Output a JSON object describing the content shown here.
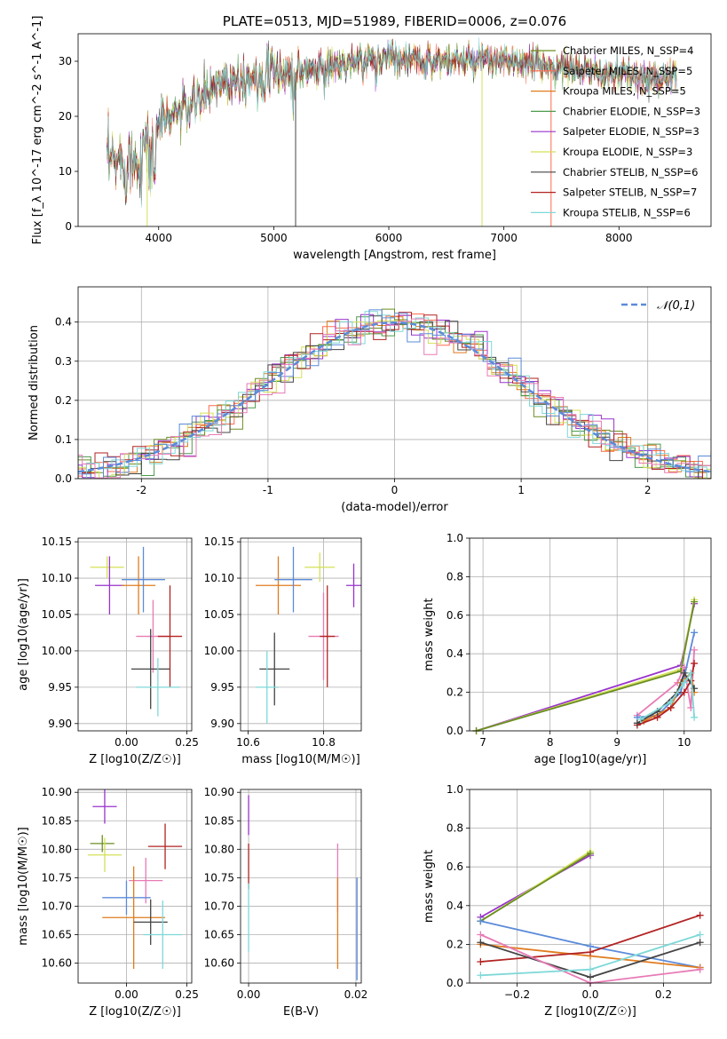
{
  "chart_data": [
    {
      "id": "spectrum",
      "type": "line",
      "title": "PLATE=0513, MJD=51989, FIBERID=0006, z=0.076",
      "xlabel": "wavelength [Angstrom, rest frame]",
      "ylabel": "Flux [f_λ 10^-17 erg cm^-2 s^-1 A^-1]",
      "xlim": [
        3300,
        8800
      ],
      "ylim": [
        0,
        35
      ],
      "xticks": [
        4000,
        5000,
        6000,
        7000,
        8000
      ],
      "yticks": [
        0,
        10,
        20,
        30
      ],
      "grid": false,
      "legend_position": "top-right",
      "legend": [
        {
          "label": "Chabrier MILES, N_SSP=4",
          "color": "#6b8e23"
        },
        {
          "label": "Salpeter MILES, N_SSP=5",
          "color": "#ff6a4d"
        },
        {
          "label": "Kroupa MILES, N_SSP=5",
          "color": "#e07b1f"
        },
        {
          "label": "Chabrier ELODIE, N_SSP=3",
          "color": "#4e9a4e"
        },
        {
          "label": "Salpeter ELODIE, N_SSP=3",
          "color": "#9933cc"
        },
        {
          "label": "Kroupa ELODIE, N_SSP=3",
          "color": "#d4e157"
        },
        {
          "label": "Chabrier STELIB, N_SSP=6",
          "color": "#444444"
        },
        {
          "label": "Salpeter STELIB, N_SSP=7",
          "color": "#b22222"
        },
        {
          "label": "Kroupa STELIB, N_SSP=6",
          "color": "#7fd8d8"
        }
      ],
      "continuum": {
        "x": [
          3550,
          3650,
          3800,
          3900,
          4000,
          4100,
          4300,
          4500,
          4700,
          5000,
          5200,
          5500,
          5800,
          6000,
          6300,
          6600,
          7000,
          7400,
          7800,
          8200,
          8500
        ],
        "y": [
          11,
          12,
          12,
          15,
          19,
          20,
          22,
          26,
          27,
          28,
          28,
          29,
          30,
          31,
          30,
          30,
          30,
          29,
          28,
          27,
          27
        ]
      }
    },
    {
      "id": "residuals",
      "type": "line",
      "xlabel": "(data-model)/error",
      "ylabel": "Normed distribution",
      "xlim": [
        -2.5,
        2.5
      ],
      "ylim": [
        0,
        0.49
      ],
      "xticks": [
        -2,
        -1,
        0,
        1,
        2
      ],
      "yticks": [
        0.0,
        0.1,
        0.2,
        0.3,
        0.4
      ],
      "grid": true,
      "legend_position": "top-right",
      "reference_label": "𝒩(0,1)",
      "reference_color": "#5b8bd9"
    },
    {
      "id": "age_vs_Z",
      "type": "scatter",
      "xlabel": "Z [log10(Z/Z☉)]",
      "ylabel": "age  [log10(age/yr)]",
      "xlim": [
        -0.2,
        0.27
      ],
      "ylim": [
        9.89,
        10.155
      ],
      "xticks": [
        0.0,
        0.25
      ],
      "xticklabels": [
        "0.00",
        "0.25"
      ],
      "yticks": [
        9.9,
        9.95,
        10.0,
        10.05,
        10.1,
        10.15
      ],
      "yticklabels": [
        "9.90",
        "9.95",
        "10.00",
        "10.05",
        "10.10",
        "10.15"
      ],
      "grid": true,
      "points": [
        {
          "x": -0.08,
          "y": 10.115,
          "xerr": 0.07,
          "yerr": 0.015,
          "color": "#d4e157"
        },
        {
          "x": -0.07,
          "y": 10.09,
          "xerr": 0.06,
          "yerr": 0.04,
          "color": "#9933cc"
        },
        {
          "x": 0.05,
          "y": 10.09,
          "xerr": 0.07,
          "yerr": 0.04,
          "color": "#e07b1f"
        },
        {
          "x": 0.07,
          "y": 10.098,
          "xerr": 0.09,
          "yerr": 0.045,
          "color": "#5b8bd9"
        },
        {
          "x": 0.11,
          "y": 10.02,
          "xerr": 0.07,
          "yerr": 0.05,
          "color": "#e87ab5"
        },
        {
          "x": 0.18,
          "y": 10.02,
          "xerr": 0.05,
          "yerr": 0.07,
          "color": "#b22222"
        },
        {
          "x": 0.1,
          "y": 9.975,
          "xerr": 0.08,
          "yerr": 0.055,
          "color": "#444444"
        },
        {
          "x": 0.13,
          "y": 9.95,
          "xerr": 0.09,
          "yerr": 0.04,
          "color": "#7fd8d8"
        }
      ]
    },
    {
      "id": "age_vs_mass",
      "type": "scatter",
      "xlabel": "mass [log10(M/M☉)]",
      "ylabel": "",
      "xlim": [
        10.58,
        10.9
      ],
      "ylim": [
        9.89,
        10.155
      ],
      "xticks": [
        10.6,
        10.8
      ],
      "xticklabels": [
        "10.6",
        "10.8"
      ],
      "yticks": [
        9.9,
        9.95,
        10.0,
        10.05,
        10.1,
        10.15
      ],
      "yticklabels": [
        "9.90",
        "9.95",
        "10.00",
        "10.05",
        "10.10",
        "10.15"
      ],
      "grid": true,
      "points": [
        {
          "x": 10.79,
          "y": 10.115,
          "xerr": 0.04,
          "yerr": 0.02,
          "color": "#d4e157"
        },
        {
          "x": 10.88,
          "y": 10.09,
          "xerr": 0.02,
          "yerr": 0.03,
          "color": "#9933cc"
        },
        {
          "x": 10.68,
          "y": 10.09,
          "xerr": 0.06,
          "yerr": 0.04,
          "color": "#e07b1f"
        },
        {
          "x": 10.72,
          "y": 10.098,
          "xerr": 0.05,
          "yerr": 0.045,
          "color": "#5b8bd9"
        },
        {
          "x": 10.8,
          "y": 10.02,
          "xerr": 0.04,
          "yerr": 0.06,
          "color": "#e87ab5"
        },
        {
          "x": 10.81,
          "y": 10.02,
          "xerr": 0.02,
          "yerr": 0.07,
          "color": "#b22222"
        },
        {
          "x": 10.67,
          "y": 9.975,
          "xerr": 0.04,
          "yerr": 0.05,
          "color": "#444444"
        },
        {
          "x": 10.65,
          "y": 9.95,
          "xerr": 0.03,
          "yerr": 0.05,
          "color": "#7fd8d8"
        }
      ]
    },
    {
      "id": "weight_vs_age",
      "type": "line",
      "xlabel": "age  [log10(age/yr)]",
      "ylabel": "mass weight",
      "xlim": [
        6.8,
        10.4
      ],
      "ylim": [
        0,
        1.0
      ],
      "xticks": [
        7,
        8,
        9,
        10
      ],
      "yticks": [
        0.0,
        0.2,
        0.4,
        0.6,
        0.8,
        1.0
      ],
      "grid": true,
      "series": [
        {
          "color": "#9933cc",
          "x": [
            6.9,
            9.95,
            10.15
          ],
          "y": [
            0.0,
            0.34,
            0.66
          ]
        },
        {
          "color": "#d4e157",
          "x": [
            6.9,
            9.95,
            10.15
          ],
          "y": [
            0.0,
            0.32,
            0.68
          ]
        },
        {
          "color": "#6b8e23",
          "x": [
            6.9,
            9.95,
            10.15
          ],
          "y": [
            0.0,
            0.31,
            0.67
          ]
        },
        {
          "color": "#e87ab5",
          "x": [
            9.3,
            9.9,
            10.0,
            10.1,
            10.15
          ],
          "y": [
            0.08,
            0.25,
            0.33,
            0.12,
            0.42
          ]
        },
        {
          "color": "#5b8bd9",
          "x": [
            9.3,
            9.6,
            9.95,
            10.15
          ],
          "y": [
            0.07,
            0.08,
            0.2,
            0.51
          ]
        },
        {
          "color": "#e07b1f",
          "x": [
            9.4,
            9.8,
            9.95,
            10.1,
            10.15
          ],
          "y": [
            0.05,
            0.12,
            0.25,
            0.3,
            0.2
          ]
        },
        {
          "color": "#b22222",
          "x": [
            9.3,
            9.6,
            9.8,
            10.0,
            10.1,
            10.15
          ],
          "y": [
            0.03,
            0.07,
            0.12,
            0.2,
            0.26,
            0.35
          ]
        },
        {
          "color": "#444444",
          "x": [
            9.3,
            9.6,
            9.9,
            10.0,
            10.15
          ],
          "y": [
            0.04,
            0.1,
            0.2,
            0.3,
            0.22
          ]
        },
        {
          "color": "#7fd8d8",
          "x": [
            9.35,
            9.8,
            10.0,
            10.1,
            10.15
          ],
          "y": [
            0.06,
            0.15,
            0.25,
            0.3,
            0.07
          ]
        }
      ]
    },
    {
      "id": "mass_vs_Z",
      "type": "scatter",
      "xlabel": "Z [log10(Z/Z☉)]",
      "ylabel": "mass [log10(M/M☉)]",
      "xlim": [
        -0.2,
        0.27
      ],
      "ylim": [
        10.565,
        10.905
      ],
      "xticks": [
        0.0,
        0.25
      ],
      "xticklabels": [
        "0.00",
        "0.25"
      ],
      "yticks": [
        10.6,
        10.65,
        10.7,
        10.75,
        10.8,
        10.85,
        10.9
      ],
      "yticklabels": [
        "10.60",
        "10.65",
        "10.70",
        "10.75",
        "10.80",
        "10.85",
        "10.90"
      ],
      "grid": true,
      "points": [
        {
          "x": -0.09,
          "y": 10.875,
          "xerr": 0.05,
          "yerr": 0.03,
          "color": "#9933cc"
        },
        {
          "x": -0.1,
          "y": 10.81,
          "xerr": 0.05,
          "yerr": 0.015,
          "color": "#6b8e23"
        },
        {
          "x": -0.09,
          "y": 10.79,
          "xerr": 0.07,
          "yerr": 0.03,
          "color": "#d4e157"
        },
        {
          "x": 0.16,
          "y": 10.805,
          "xerr": 0.07,
          "yerr": 0.04,
          "color": "#b22222"
        },
        {
          "x": 0.08,
          "y": 10.745,
          "xerr": 0.07,
          "yerr": 0.04,
          "color": "#e87ab5"
        },
        {
          "x": 0.0,
          "y": 10.715,
          "xerr": 0.1,
          "yerr": 0.03,
          "color": "#5b8bd9"
        },
        {
          "x": 0.03,
          "y": 10.68,
          "xerr": 0.13,
          "yerr": 0.09,
          "color": "#e07b1f"
        },
        {
          "x": 0.1,
          "y": 10.672,
          "xerr": 0.07,
          "yerr": 0.04,
          "color": "#444444"
        },
        {
          "x": 0.15,
          "y": 10.65,
          "xerr": 0.08,
          "yerr": 0.06,
          "color": "#7fd8d8"
        }
      ]
    },
    {
      "id": "mass_vs_ebv",
      "type": "scatter",
      "xlabel": "E(B-V)",
      "ylabel": "",
      "xlim": [
        -0.0015,
        0.021
      ],
      "ylim": [
        10.565,
        10.905
      ],
      "xticks": [
        0.0,
        0.02
      ],
      "xticklabels": [
        "0.00",
        "0.02"
      ],
      "yticks": [
        10.6,
        10.65,
        10.7,
        10.75,
        10.8,
        10.85,
        10.9
      ],
      "yticklabels": [
        "10.60",
        "10.65",
        "10.70",
        "10.75",
        "10.80",
        "10.85",
        "10.90"
      ],
      "grid": true,
      "points": [
        {
          "x": 0.0,
          "y": 10.86,
          "xerr": 0,
          "yerr": 0.035,
          "color": "#9933cc"
        },
        {
          "x": 0.0,
          "y": 10.77,
          "xerr": 0,
          "yerr": 0.04,
          "color": "#b22222"
        },
        {
          "x": 0.0,
          "y": 10.68,
          "xerr": 0,
          "yerr": 0.06,
          "color": "#7fd8d8"
        },
        {
          "x": 0.0166,
          "y": 10.75,
          "xerr": 0,
          "yerr": 0.06,
          "color": "#e87ab5"
        },
        {
          "x": 0.0166,
          "y": 10.67,
          "xerr": 0,
          "yerr": 0.08,
          "color": "#e07b1f"
        },
        {
          "x": 0.0202,
          "y": 10.66,
          "xerr": 0,
          "yerr": 0.09,
          "color": "#5b8bd9"
        }
      ]
    },
    {
      "id": "weight_vs_Z",
      "type": "line",
      "xlabel": "Z [log10(Z/Z☉)]",
      "ylabel": "mass weight",
      "xlim": [
        -0.33,
        0.33
      ],
      "ylim": [
        0,
        1.0
      ],
      "xticks": [
        -0.2,
        0.0,
        0.2
      ],
      "xticklabels": [
        "−0.2",
        "0.0",
        "0.2"
      ],
      "yticks": [
        0.0,
        0.2,
        0.4,
        0.6,
        0.8,
        1.0
      ],
      "grid": true,
      "series": [
        {
          "color": "#9933cc",
          "x": [
            -0.3,
            0.0
          ],
          "y": [
            0.34,
            0.66
          ]
        },
        {
          "color": "#d4e157",
          "x": [
            -0.3,
            0.0
          ],
          "y": [
            0.32,
            0.68
          ]
        },
        {
          "color": "#6b8e23",
          "x": [
            -0.3,
            0.0
          ],
          "y": [
            0.32,
            0.67
          ]
        },
        {
          "color": "#5b8bd9",
          "x": [
            -0.3,
            0.0,
            0.3
          ],
          "y": [
            0.32,
            0.19,
            0.08
          ]
        },
        {
          "color": "#e07b1f",
          "x": [
            -0.3,
            0.0,
            0.3
          ],
          "y": [
            0.2,
            0.14,
            0.08
          ]
        },
        {
          "color": "#b22222",
          "x": [
            -0.3,
            0.0,
            0.3
          ],
          "y": [
            0.11,
            0.16,
            0.35
          ]
        },
        {
          "color": "#444444",
          "x": [
            -0.3,
            0.0,
            0.3
          ],
          "y": [
            0.21,
            0.03,
            0.21
          ]
        },
        {
          "color": "#e87ab5",
          "x": [
            -0.3,
            0.0,
            0.3
          ],
          "y": [
            0.25,
            0.0,
            0.07
          ]
        },
        {
          "color": "#7fd8d8",
          "x": [
            -0.3,
            0.0,
            0.3
          ],
          "y": [
            0.04,
            0.07,
            0.25
          ]
        }
      ]
    }
  ]
}
